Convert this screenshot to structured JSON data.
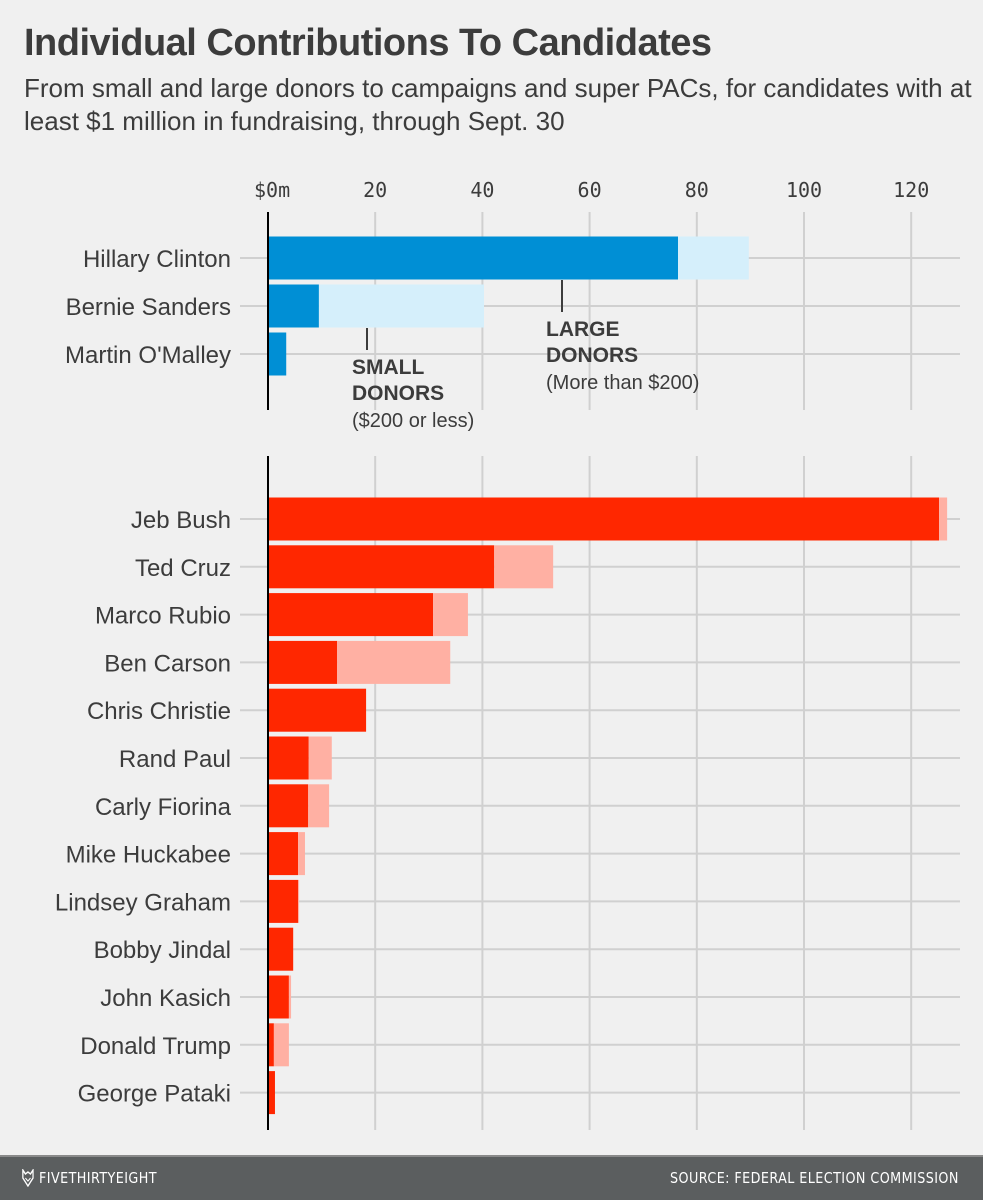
{
  "header": {
    "title": "Individual Contributions To Candidates",
    "subtitle": "From small and large donors to campaigns and super PACs, for candidates with at least $1 million in fundraising, through Sept. 30"
  },
  "chart_data": {
    "type": "bar",
    "orientation": "horizontal",
    "stacked": true,
    "title": "Individual Contributions To Candidates",
    "xlabel": "",
    "ylabel": "",
    "xlim": [
      0,
      128
    ],
    "x_ticks": [
      0,
      20,
      40,
      60,
      80,
      100,
      120
    ],
    "x_tick_labels": [
      "$0m",
      "20",
      "40",
      "60",
      "80",
      "100",
      "120"
    ],
    "grid": true,
    "series_names": [
      "Large donors",
      "Small donors"
    ],
    "annotations": {
      "large": {
        "title_line1": "LARGE",
        "title_line2": "DONORS",
        "note": "(More than $200)"
      },
      "small": {
        "title_line1": "SMALL",
        "title_line2": "DONORS",
        "note": "($200 or less)"
      }
    },
    "panels": [
      {
        "party": "Democrats",
        "colors": {
          "large": "#008fd5",
          "small": "#d5effb"
        },
        "categories": [
          "Hillary Clinton",
          "Bernie Sanders",
          "Martin O'Malley"
        ],
        "series": [
          {
            "name": "Large donors",
            "values": [
              76.5,
              9.5,
              3.4
            ]
          },
          {
            "name": "Small donors",
            "values": [
              13.2,
              30.8,
              0.0
            ]
          }
        ]
      },
      {
        "party": "Republicans",
        "colors": {
          "large": "#ff2700",
          "small": "#ffb0a3"
        },
        "categories": [
          "Jeb Bush",
          "Ted Cruz",
          "Marco Rubio",
          "Ben Carson",
          "Chris Christie",
          "Rand Paul",
          "Carly Fiorina",
          "Mike Huckabee",
          "Lindsey Graham",
          "Bobby Jindal",
          "John Kasich",
          "Donald Trump",
          "George Pataki"
        ],
        "series": [
          {
            "name": "Large donors",
            "values": [
              125.2,
              42.2,
              30.8,
              12.9,
              18.3,
              7.6,
              7.5,
              5.6,
              5.6,
              4.7,
              3.9,
              1.1,
              1.3
            ]
          },
          {
            "name": "Small donors",
            "values": [
              1.5,
              11.0,
              6.5,
              21.1,
              0.0,
              4.3,
              3.9,
              1.3,
              0.2,
              0.0,
              0.4,
              2.8,
              0.0
            ]
          }
        ]
      }
    ]
  },
  "footer": {
    "brand": "FIVETHIRTYEIGHT",
    "source": "SOURCE: FEDERAL ELECTION COMMISSION"
  }
}
